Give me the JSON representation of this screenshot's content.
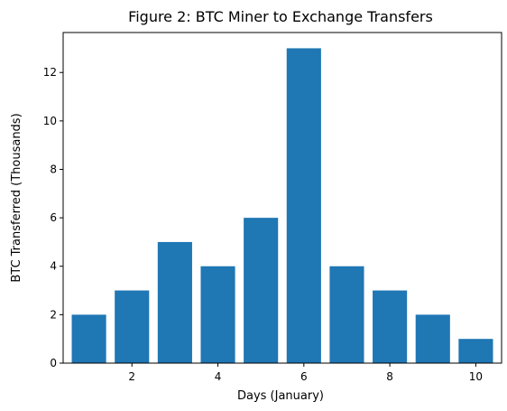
{
  "chart_data": {
    "type": "bar",
    "title": "Figure 2: BTC Miner to Exchange Transfers",
    "xlabel": "Days (January)",
    "ylabel": "BTC Transferred (Thousands)",
    "x": [
      1,
      2,
      3,
      4,
      5,
      6,
      7,
      8,
      9,
      10
    ],
    "values": [
      2,
      3,
      5,
      4,
      6,
      13,
      4,
      3,
      2,
      1
    ],
    "xlim": [
      0.4,
      10.6
    ],
    "ylim": [
      0,
      13.65
    ],
    "xticks": [
      2,
      4,
      6,
      8,
      10
    ],
    "yticks": [
      0,
      2,
      4,
      6,
      8,
      10,
      12
    ],
    "grid": false,
    "colors": {
      "bar": "#1f77b4"
    }
  }
}
